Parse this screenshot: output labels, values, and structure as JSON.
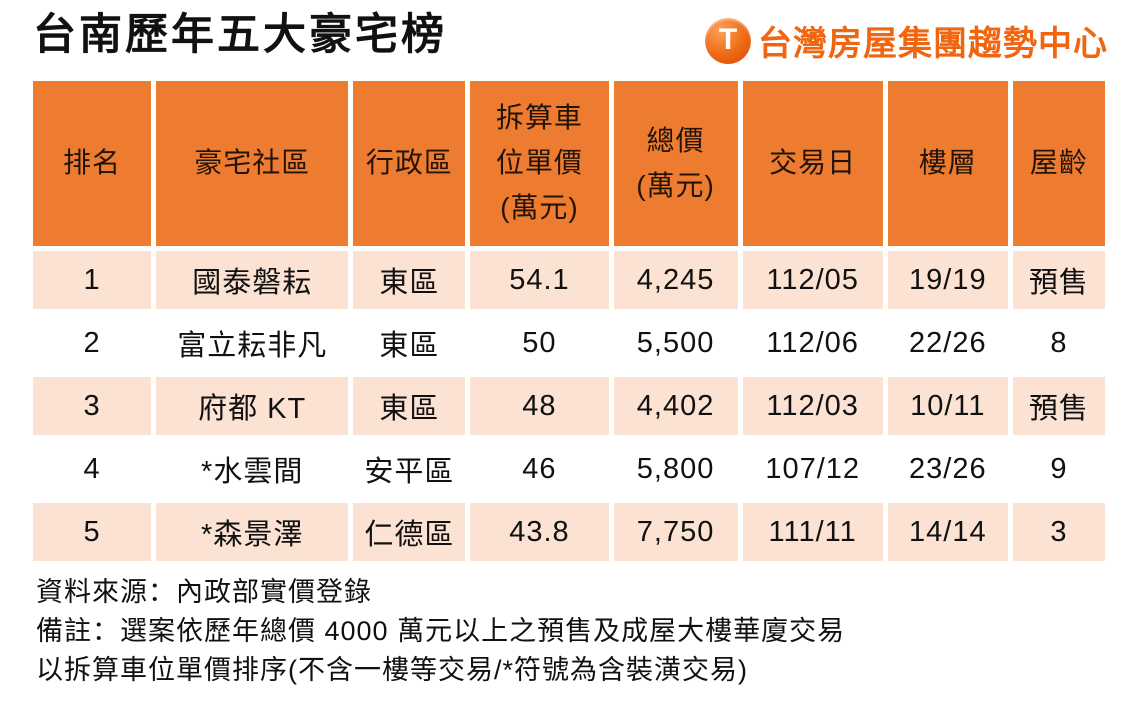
{
  "page": {
    "title": "台南歷年五大豪宅榜",
    "logo": {
      "icon_letter": "T",
      "text": "台灣房屋集團趨勢中心"
    }
  },
  "chart_data": {
    "type": "table",
    "title": "台南歷年五大豪宅榜",
    "columns": [
      {
        "label": "排名",
        "display": "排名"
      },
      {
        "label": "豪宅社區",
        "display": "豪宅社區"
      },
      {
        "label": "行政區",
        "display": "行政區"
      },
      {
        "label": "拆算車位單價(萬元)",
        "display": "拆算車\n位單價\n(萬元)"
      },
      {
        "label": "總價(萬元)",
        "display": "總價\n(萬元)"
      },
      {
        "label": "交易日",
        "display": "交易日"
      },
      {
        "label": "樓層",
        "display": "樓層"
      },
      {
        "label": "屋齡",
        "display": "屋齡"
      }
    ],
    "rows": [
      [
        "1",
        "國泰磐耘",
        "東區",
        "54.1",
        "4,245",
        "112/05",
        "19/19",
        "預售"
      ],
      [
        "2",
        "富立耘非凡",
        "東區",
        "50",
        "5,500",
        "112/06",
        "22/26",
        "8"
      ],
      [
        "3",
        "府都 KT",
        "東區",
        "48",
        "4,402",
        "112/03",
        "10/11",
        "預售"
      ],
      [
        "4",
        "*水雲間",
        "安平區",
        "46",
        "5,800",
        "107/12",
        "23/26",
        "9"
      ],
      [
        "5",
        "*森景澤",
        "仁德區",
        "43.8",
        "7,750",
        "111/11",
        "14/14",
        "3"
      ]
    ],
    "footnotes": [
      "資料來源：內政部實價登錄",
      "備註：選案依歷年總價 4000 萬元以上之預售及成屋大樓華廈交易",
      "以拆算車位單價排序(不含一樓等交易/*符號為含裝潢交易)"
    ]
  },
  "colors": {
    "header_bg": "#ED7C31",
    "row_alt_bg": "#FBE2D2",
    "logo_orange": "#F0650F",
    "text": "#1A1A1A"
  }
}
